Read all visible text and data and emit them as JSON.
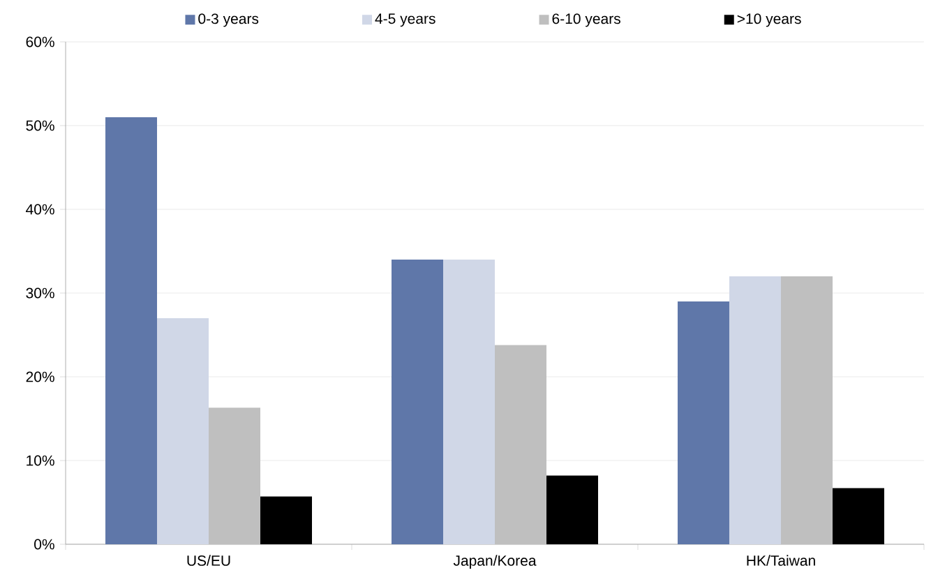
{
  "chart_data": {
    "type": "bar",
    "categories": [
      "US/EU",
      "Japan/Korea",
      "HK/Taiwan"
    ],
    "series": [
      {
        "name": "0-3 years",
        "color": "#5f77a9",
        "values": [
          51,
          34,
          29
        ]
      },
      {
        "name": "4-5 years",
        "color": "#d0d7e7",
        "values": [
          27,
          34,
          32
        ]
      },
      {
        "name": "6-10 years",
        "color": "#bfbfbf",
        "values": [
          16.3,
          23.8,
          32
        ]
      },
      {
        "name": ">10 years",
        "color": "#000000",
        "values": [
          5.7,
          8.2,
          6.7
        ]
      }
    ],
    "ylim": [
      0,
      60
    ],
    "yticks": [
      {
        "value": 0,
        "label": "0%"
      },
      {
        "value": 10,
        "label": "10%"
      },
      {
        "value": 20,
        "label": "20%"
      },
      {
        "value": 30,
        "label": "30%"
      },
      {
        "value": 40,
        "label": "40%"
      },
      {
        "value": 50,
        "label": "50%"
      },
      {
        "value": 60,
        "label": "60%"
      }
    ],
    "grid": "y",
    "legend": "top"
  }
}
